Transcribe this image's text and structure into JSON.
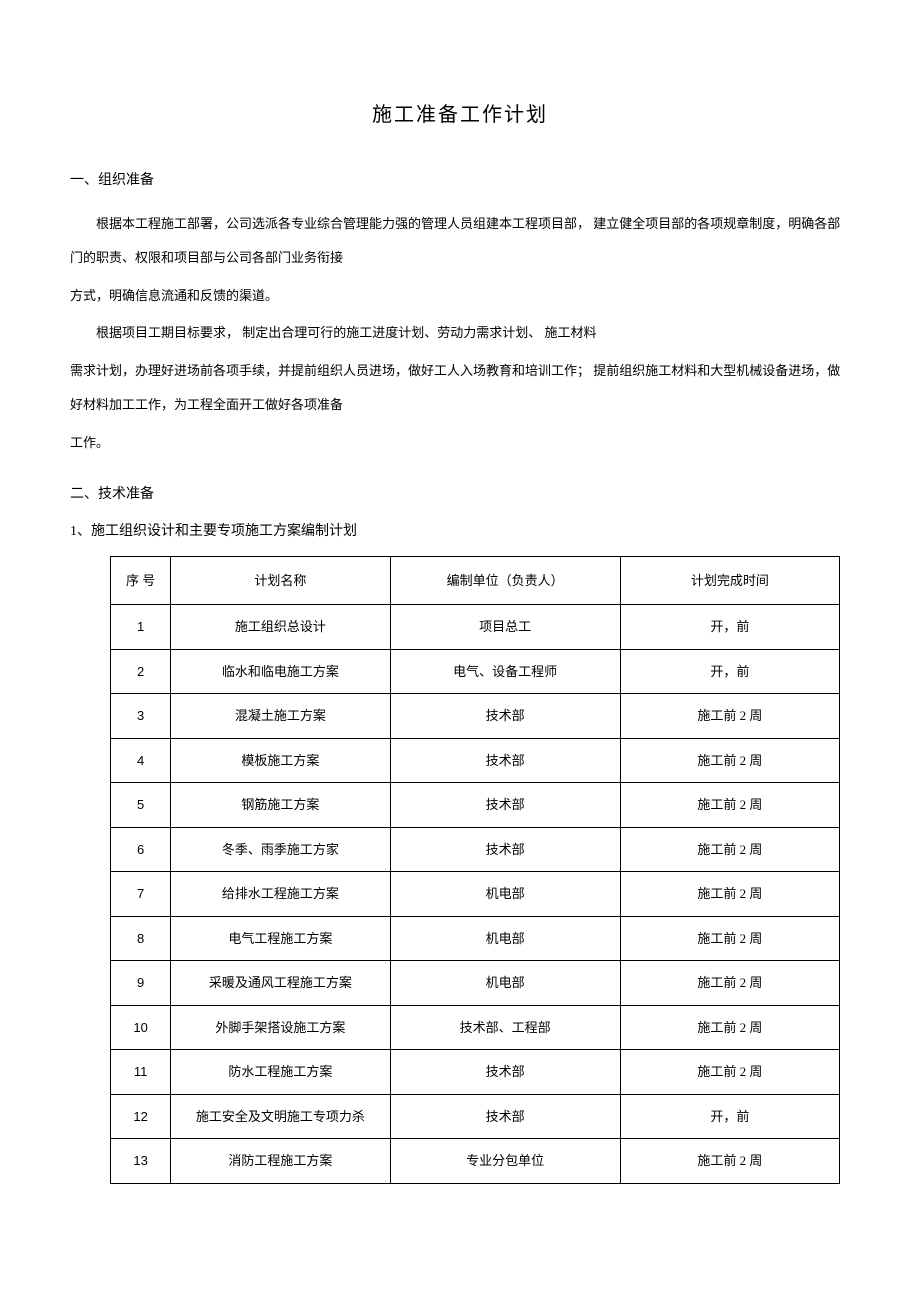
{
  "title": "施工准备工作计划",
  "section1": {
    "header": "一、组织准备",
    "p1": "根据本工程施工部署，公司选派各专业综合管理能力强的管理人员组建本工程项目部，  建立健全项目部的各项规章制度，明确各部门的职责、权限和项目部与公司各部门业务衔接",
    "p2": "方式，明确信息流通和反馈的渠道。",
    "p3": "根据项目工期目标要求，  制定出合理可行的施工进度计划、劳动力需求计划、  施工材料",
    "p4": "需求计划，办理好进场前各项手续，并提前组织人员进场，做好工人入场教育和培训工作；  提前组织施工材料和大型机械设备进场，做好材料加工工作，为工程全面开工做好各项准备",
    "p5": "工作。"
  },
  "section2": {
    "header": "二、技术准备",
    "sub1": "1、施工组织设计和主要专项施工方案编制计划"
  },
  "table": {
    "columns": [
      "序  号",
      "计划名称",
      "编制单位（负责人）",
      "计划完成时间"
    ],
    "rows": [
      [
        "1",
        "施工组织总设计",
        "项目总工",
        "开，前"
      ],
      [
        "2",
        "临水和临电施工方案",
        "电气、设备工程师",
        "开，前"
      ],
      [
        "3",
        "混凝土施工方案",
        "技术部",
        "施工前 2 周"
      ],
      [
        "4",
        "模板施工方案",
        "技术部",
        "施工前 2 周"
      ],
      [
        "5",
        "钢筋施工方案",
        "技术部",
        "施工前 2 周"
      ],
      [
        "6",
        "冬季、雨季施工方家",
        "技术部",
        "施工前 2 周"
      ],
      [
        "7",
        "给排水工程施工方案",
        "机电部",
        "施工前 2 周"
      ],
      [
        "8",
        "电气工程施工方案",
        "机电部",
        "施工前 2 周"
      ],
      [
        "9",
        "采暖及通风工程施工方案",
        "机电部",
        "施工前 2 周"
      ],
      [
        "10",
        "外脚手架搭设施工方案",
        "技术部、工程部",
        "施工前 2 周"
      ],
      [
        "11",
        "防水工程施工方案",
        "技术部",
        "施工前 2 周"
      ],
      [
        "12",
        "施工安全及文明施工专项力杀",
        "技术部",
        "开，前"
      ],
      [
        "13",
        "消防工程施工方案",
        "专业分包单位",
        "施工前 2 周"
      ]
    ]
  }
}
